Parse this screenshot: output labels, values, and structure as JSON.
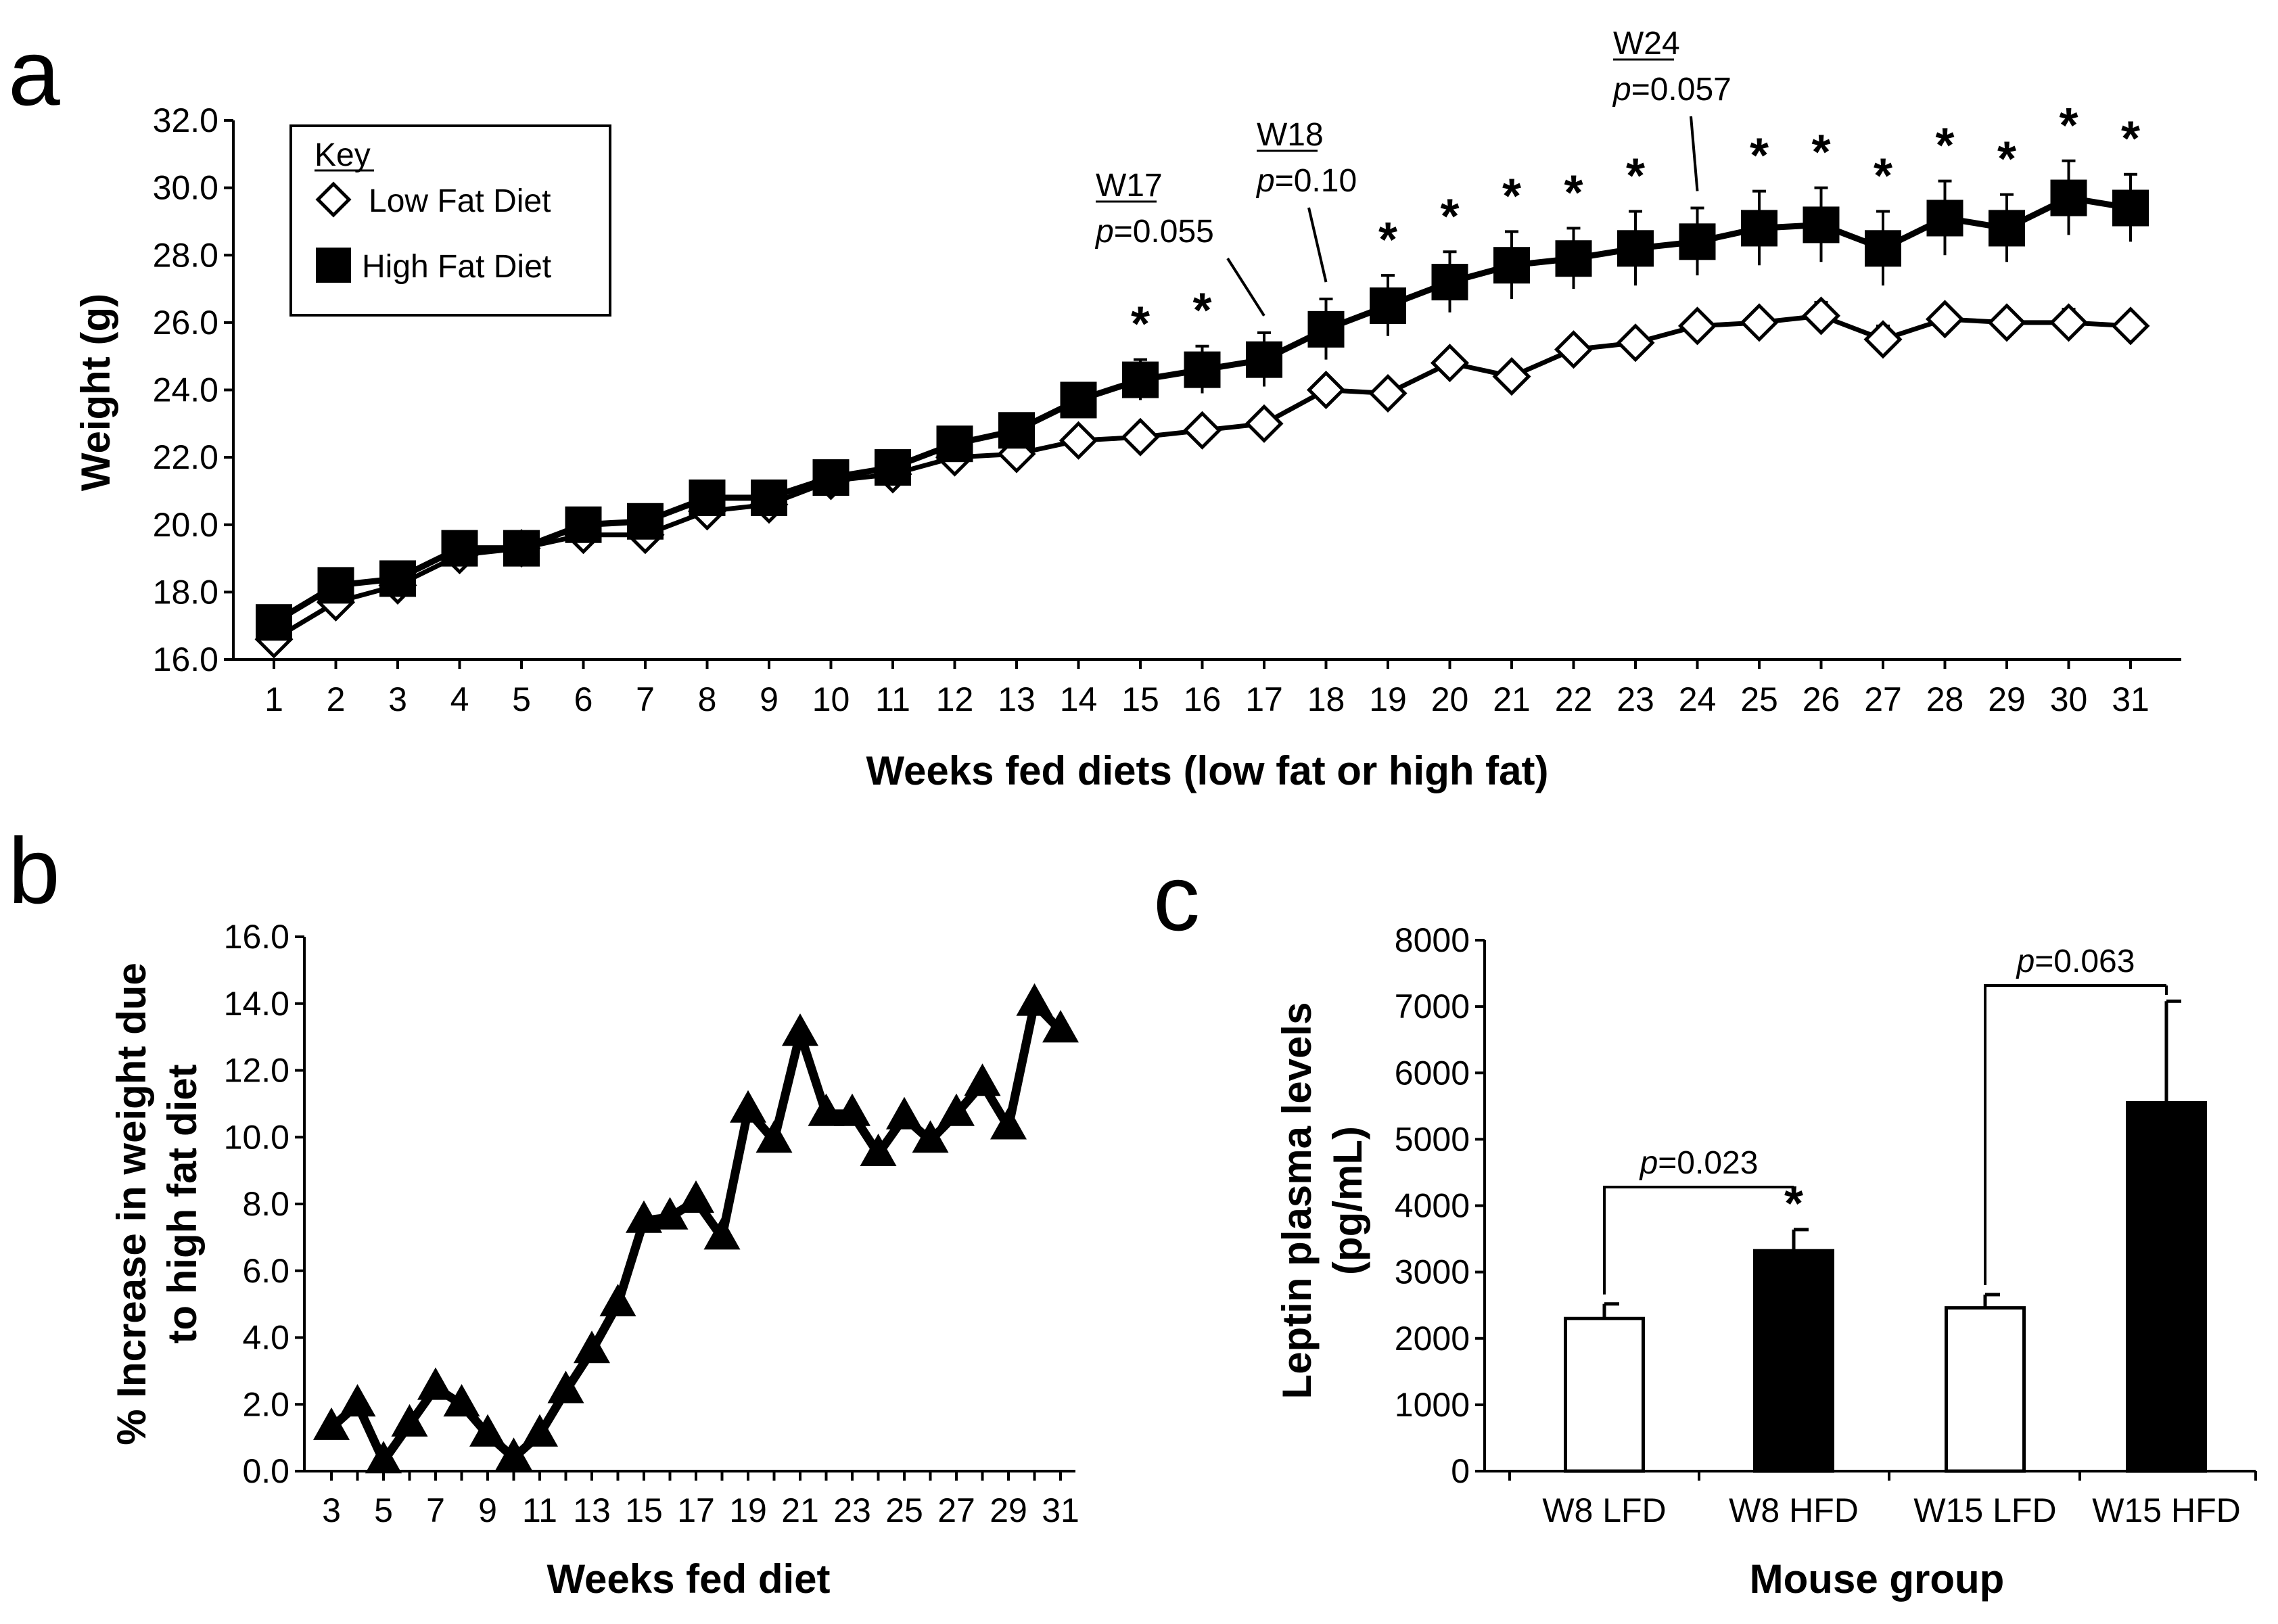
{
  "colors": {
    "ink": "#000000",
    "paper": "#ffffff"
  },
  "chart_data": [
    {
      "panel": "a",
      "type": "line",
      "title": "",
      "xlabel": "Weeks fed diets (low fat or high fat)",
      "ylabel": "Weight (g)",
      "x": [
        1,
        2,
        3,
        4,
        5,
        6,
        7,
        8,
        9,
        10,
        11,
        12,
        13,
        14,
        15,
        16,
        17,
        18,
        19,
        20,
        21,
        22,
        23,
        24,
        25,
        26,
        27,
        28,
        29,
        30,
        31
      ],
      "xticks": [
        "1",
        "2",
        "3",
        "4",
        "5",
        "6",
        "7",
        "8",
        "9",
        "10",
        "11",
        "12",
        "13",
        "14",
        "15",
        "16",
        "17",
        "18",
        "19",
        "20",
        "21",
        "22",
        "23",
        "24",
        "25",
        "26",
        "27",
        "28",
        "29",
        "30",
        "31"
      ],
      "ylim": [
        16.0,
        32.0
      ],
      "yticks": [
        "16.0",
        "18.0",
        "20.0",
        "22.0",
        "24.0",
        "26.0",
        "28.0",
        "30.0",
        "32.0"
      ],
      "legend_title": "Key",
      "legend_position": "top-left",
      "series": [
        {
          "name": "Low Fat Diet",
          "marker": "open-diamond",
          "values": [
            16.6,
            17.7,
            18.2,
            19.1,
            19.3,
            19.7,
            19.7,
            20.4,
            20.6,
            21.3,
            21.5,
            22.0,
            22.1,
            22.5,
            22.6,
            22.8,
            23.0,
            24.0,
            23.9,
            24.8,
            24.4,
            25.2,
            25.4,
            25.9,
            26.0,
            26.2,
            25.5,
            26.1,
            26.0,
            26.0,
            25.9
          ],
          "errors": [
            0.1,
            0.2,
            0.2,
            0.2,
            0.2,
            0.2,
            0.2,
            0.2,
            0.2,
            0.2,
            0.2,
            0.2,
            0.2,
            0.2,
            0.2,
            0.2,
            0.2,
            0.3,
            0.3,
            0.3,
            0.3,
            0.3,
            0.3,
            0.3,
            0.3,
            0.4,
            0.4,
            0.3,
            0.3,
            0.4,
            0.3
          ]
        },
        {
          "name": "High Fat Diet",
          "marker": "filled-square",
          "values": [
            17.1,
            18.2,
            18.4,
            19.3,
            19.3,
            20.0,
            20.1,
            20.8,
            20.8,
            21.4,
            21.7,
            22.4,
            22.8,
            23.7,
            24.3,
            24.6,
            24.9,
            25.8,
            26.5,
            27.2,
            27.7,
            27.9,
            28.2,
            28.4,
            28.8,
            28.9,
            28.2,
            29.1,
            28.8,
            29.7,
            29.4
          ],
          "errors": [
            0.3,
            0.3,
            0.3,
            0.3,
            0.3,
            0.3,
            0.3,
            0.3,
            0.3,
            0.3,
            0.3,
            0.3,
            0.4,
            0.4,
            0.6,
            0.7,
            0.8,
            0.9,
            0.9,
            0.9,
            1.0,
            0.9,
            1.1,
            1.0,
            1.1,
            1.1,
            1.1,
            1.1,
            1.0,
            1.1,
            1.0
          ]
        }
      ],
      "significant_weeks": [
        15,
        16,
        19,
        20,
        21,
        22,
        23,
        25,
        26,
        27,
        28,
        29,
        30,
        31
      ],
      "significance_label": "*",
      "annotations": [
        {
          "week": 17,
          "label": "W17",
          "p_prefix": "p",
          "p_value": "=0.055"
        },
        {
          "week": 18,
          "label": "W18",
          "p_prefix": "p",
          "p_value": "=0.10"
        },
        {
          "week": 24,
          "label": "W24",
          "p_prefix": "p",
          "p_value": "=0.057"
        }
      ]
    },
    {
      "panel": "b",
      "type": "line",
      "title": "",
      "xlabel": "Weeks fed diet",
      "ylabel": "% Increase in weight due to high fat diet",
      "ylabel_lines": [
        "% Increase in weight due",
        "to high fat diet"
      ],
      "x": [
        3,
        4,
        5,
        6,
        7,
        8,
        9,
        10,
        11,
        12,
        13,
        14,
        15,
        16,
        17,
        18,
        19,
        20,
        21,
        22,
        23,
        24,
        25,
        26,
        27,
        28,
        29,
        30,
        31
      ],
      "xticks": [
        "3",
        "5",
        "7",
        "9",
        "11",
        "13",
        "15",
        "17",
        "19",
        "21",
        "23",
        "25",
        "27",
        "29",
        "31"
      ],
      "ylim": [
        0.0,
        16.0
      ],
      "yticks": [
        "0.0",
        "2.0",
        "4.0",
        "6.0",
        "8.0",
        "10.0",
        "12.0",
        "14.0",
        "16.0"
      ],
      "series": [
        {
          "name": "% increase",
          "marker": "filled-triangle",
          "values": [
            1.3,
            2.0,
            0.3,
            1.4,
            2.5,
            2.0,
            1.1,
            0.4,
            1.1,
            2.4,
            3.6,
            5.0,
            7.5,
            7.6,
            8.1,
            7.0,
            10.8,
            9.9,
            13.1,
            10.7,
            10.7,
            9.5,
            10.6,
            9.9,
            10.7,
            11.6,
            10.3,
            14.0,
            13.2
          ]
        }
      ]
    },
    {
      "panel": "c",
      "type": "bar",
      "title": "",
      "xlabel": "Mouse group",
      "ylabel": "Leptin plasma levels (pg/mL)",
      "ylabel_lines": [
        "Leptin plasma levels",
        "(pg/mL)"
      ],
      "categories": [
        "W8  LFD",
        "W8  HFD",
        "W15  LFD",
        "W15  HFD"
      ],
      "values": [
        2300,
        3320,
        2460,
        5550
      ],
      "errors": [
        220,
        320,
        200,
        1530
      ],
      "fills": [
        "#ffffff",
        "#000000",
        "#ffffff",
        "#000000"
      ],
      "ylim": [
        0,
        8000
      ],
      "yticks": [
        "0",
        "1000",
        "2000",
        "3000",
        "4000",
        "5000",
        "6000",
        "7000",
        "8000"
      ],
      "significance": [
        {
          "from": 0,
          "to": 1,
          "p_prefix": "p",
          "p_value": "=0.023",
          "star": "*"
        },
        {
          "from": 2,
          "to": 3,
          "p_prefix": "p",
          "p_value": "=0.063",
          "star": ""
        }
      ]
    }
  ]
}
